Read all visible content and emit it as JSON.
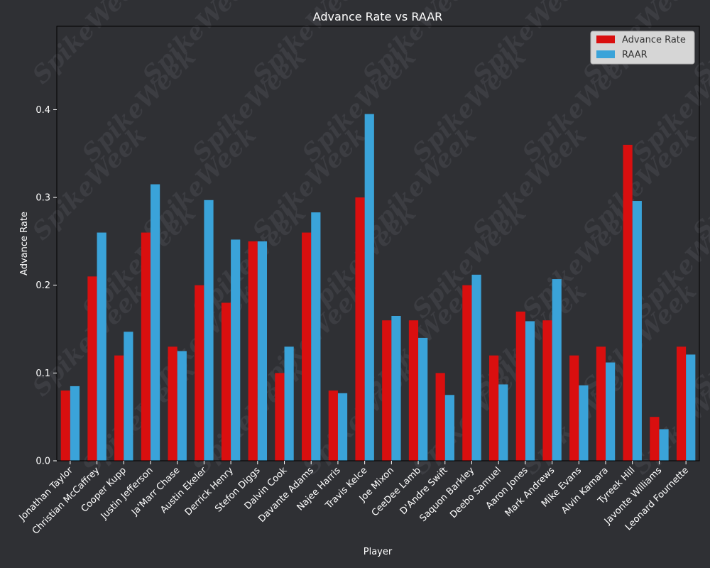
{
  "colors": {
    "background": "#2f3034",
    "advance_rate": "#d90f0f",
    "raar": "#3aa3d9",
    "axis": "#000000",
    "text": "#ffffff"
  },
  "watermark": "SpikeWeek",
  "chart_data": {
    "type": "bar",
    "title": "Advance Rate vs RAAR",
    "xlabel": "Player",
    "ylabel": "Advance Rate",
    "ylim": [
      0,
      0.495
    ],
    "yticks": [
      0.0,
      0.1,
      0.2,
      0.3,
      0.4
    ],
    "ytick_labels": [
      "0.0",
      "0.1",
      "0.2",
      "0.3",
      "0.4"
    ],
    "grid": false,
    "legend_position": "top-right",
    "categories": [
      "Jonathan Taylor",
      "Christian McCaffrey",
      "Cooper Kupp",
      "Justin Jefferson",
      "Ja'Marr Chase",
      "Austin Ekeler",
      "Derrick Henry",
      "Stefon Diggs",
      "Dalvin Cook",
      "Davante Adams",
      "Najee Harris",
      "Travis Kelce",
      "Joe Mixon",
      "CeeDee Lamb",
      "D'Andre Swift",
      "Saquon Barkley",
      "Deebo Samuel",
      "Aaron Jones",
      "Mark Andrews",
      "Mike Evans",
      "Alvin Kamara",
      "Tyreek Hill",
      "Javonte Williams",
      "Leonard Fournette"
    ],
    "series": [
      {
        "name": "Advance Rate",
        "color": "#d90f0f",
        "values": [
          0.08,
          0.21,
          0.12,
          0.26,
          0.13,
          0.2,
          0.18,
          0.25,
          0.1,
          0.26,
          0.08,
          0.3,
          0.16,
          0.16,
          0.1,
          0.2,
          0.12,
          0.17,
          0.16,
          0.12,
          0.13,
          0.36,
          0.05,
          0.13
        ]
      },
      {
        "name": "RAAR",
        "color": "#3aa3d9",
        "values": [
          0.085,
          0.26,
          0.147,
          0.315,
          0.125,
          0.297,
          0.252,
          0.25,
          0.13,
          0.283,
          0.077,
          0.395,
          0.165,
          0.14,
          0.075,
          0.212,
          0.087,
          0.159,
          0.207,
          0.086,
          0.112,
          0.296,
          0.036,
          0.121
        ]
      }
    ]
  }
}
